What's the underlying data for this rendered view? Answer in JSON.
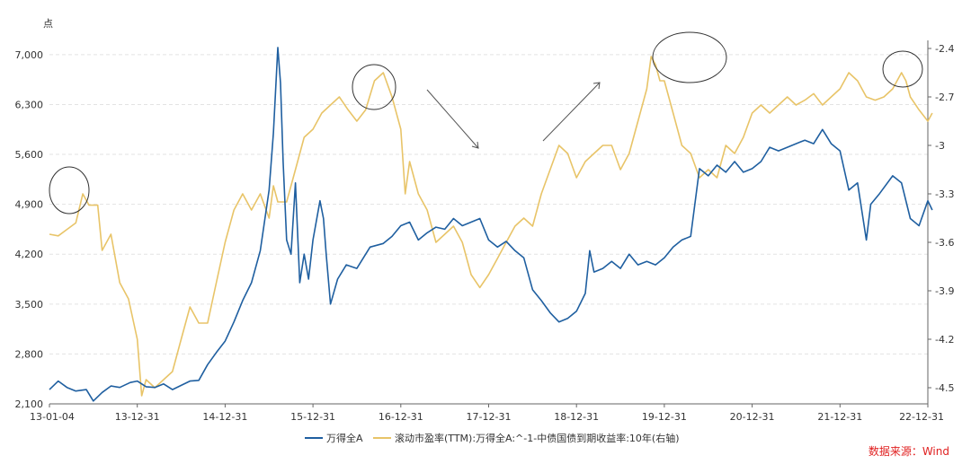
{
  "chart_data": {
    "type": "line",
    "left_unit": "点",
    "left_ylim": [
      2100,
      7200
    ],
    "left_ticks": [
      "7,000",
      "6,300",
      "5,600",
      "4,900",
      "4,200",
      "3,500",
      "2,800",
      "2,100"
    ],
    "right_ylim": [
      -4.6,
      -2.35
    ],
    "right_ticks": [
      "-2.4",
      "-2.7",
      "-3",
      "-3.3",
      "-3.6",
      "-3.9",
      "-4.2",
      "-4.5"
    ],
    "x_ticks": [
      "13-01-04",
      "13-12-31",
      "14-12-31",
      "15-12-31",
      "16-12-31",
      "17-12-31",
      "18-12-31",
      "19-12-31",
      "20-12-31",
      "21-12-31",
      "22-12-31"
    ],
    "grid": true,
    "legend_position": "bottom",
    "series": [
      {
        "name": "万得全A",
        "axis": "left",
        "color": "#1f5fa0",
        "points": [
          [
            0.0,
            2300
          ],
          [
            0.1,
            2420
          ],
          [
            0.2,
            2330
          ],
          [
            0.3,
            2280
          ],
          [
            0.42,
            2300
          ],
          [
            0.5,
            2140
          ],
          [
            0.6,
            2260
          ],
          [
            0.7,
            2350
          ],
          [
            0.8,
            2330
          ],
          [
            0.92,
            2400
          ],
          [
            1.0,
            2420
          ],
          [
            1.1,
            2340
          ],
          [
            1.2,
            2330
          ],
          [
            1.3,
            2380
          ],
          [
            1.4,
            2300
          ],
          [
            1.5,
            2360
          ],
          [
            1.6,
            2420
          ],
          [
            1.7,
            2430
          ],
          [
            1.8,
            2650
          ],
          [
            1.9,
            2820
          ],
          [
            2.0,
            2980
          ],
          [
            2.1,
            3250
          ],
          [
            2.2,
            3550
          ],
          [
            2.3,
            3800
          ],
          [
            2.4,
            4250
          ],
          [
            2.5,
            5100
          ],
          [
            2.55,
            5900
          ],
          [
            2.6,
            7100
          ],
          [
            2.63,
            6600
          ],
          [
            2.66,
            5500
          ],
          [
            2.7,
            4400
          ],
          [
            2.75,
            4200
          ],
          [
            2.8,
            5200
          ],
          [
            2.85,
            3800
          ],
          [
            2.9,
            4200
          ],
          [
            2.95,
            3850
          ],
          [
            3.0,
            4400
          ],
          [
            3.08,
            4950
          ],
          [
            3.12,
            4700
          ],
          [
            3.15,
            4200
          ],
          [
            3.2,
            3500
          ],
          [
            3.28,
            3850
          ],
          [
            3.38,
            4050
          ],
          [
            3.5,
            4000
          ],
          [
            3.65,
            4300
          ],
          [
            3.8,
            4350
          ],
          [
            3.9,
            4450
          ],
          [
            4.0,
            4600
          ],
          [
            4.1,
            4650
          ],
          [
            4.2,
            4400
          ],
          [
            4.3,
            4500
          ],
          [
            4.4,
            4580
          ],
          [
            4.5,
            4550
          ],
          [
            4.6,
            4700
          ],
          [
            4.7,
            4600
          ],
          [
            4.8,
            4650
          ],
          [
            4.9,
            4700
          ],
          [
            5.0,
            4400
          ],
          [
            5.1,
            4300
          ],
          [
            5.2,
            4380
          ],
          [
            5.3,
            4250
          ],
          [
            5.4,
            4150
          ],
          [
            5.5,
            3700
          ],
          [
            5.6,
            3550
          ],
          [
            5.7,
            3380
          ],
          [
            5.8,
            3250
          ],
          [
            5.9,
            3300
          ],
          [
            6.0,
            3400
          ],
          [
            6.1,
            3650
          ],
          [
            6.15,
            4250
          ],
          [
            6.2,
            3950
          ],
          [
            6.3,
            4000
          ],
          [
            6.4,
            4100
          ],
          [
            6.5,
            4000
          ],
          [
            6.6,
            4200
          ],
          [
            6.7,
            4050
          ],
          [
            6.8,
            4100
          ],
          [
            6.9,
            4050
          ],
          [
            7.0,
            4150
          ],
          [
            7.1,
            4300
          ],
          [
            7.2,
            4400
          ],
          [
            7.3,
            4450
          ],
          [
            7.4,
            5400
          ],
          [
            7.5,
            5300
          ],
          [
            7.6,
            5450
          ],
          [
            7.7,
            5350
          ],
          [
            7.8,
            5500
          ],
          [
            7.9,
            5350
          ],
          [
            8.0,
            5400
          ],
          [
            8.1,
            5500
          ],
          [
            8.2,
            5700
          ],
          [
            8.3,
            5650
          ],
          [
            8.4,
            5700
          ],
          [
            8.5,
            5750
          ],
          [
            8.6,
            5800
          ],
          [
            8.7,
            5750
          ],
          [
            8.8,
            5950
          ],
          [
            8.9,
            5750
          ],
          [
            9.0,
            5650
          ],
          [
            9.1,
            5100
          ],
          [
            9.2,
            5200
          ],
          [
            9.3,
            4400
          ],
          [
            9.35,
            4900
          ],
          [
            9.45,
            5050
          ],
          [
            9.6,
            5300
          ],
          [
            9.7,
            5200
          ],
          [
            9.8,
            4700
          ],
          [
            9.9,
            4600
          ],
          [
            10.0,
            4950
          ],
          [
            10.05,
            4820
          ]
        ]
      },
      {
        "name": "滚动市盈率(TTM):万得全A:^-1-中债国债到期收益率:10年(右轴)",
        "axis": "right",
        "color": "#e8c468",
        "points": [
          [
            0.0,
            -3.55
          ],
          [
            0.1,
            -3.56
          ],
          [
            0.2,
            -3.52
          ],
          [
            0.3,
            -3.48
          ],
          [
            0.38,
            -3.3
          ],
          [
            0.45,
            -3.37
          ],
          [
            0.55,
            -3.37
          ],
          [
            0.6,
            -3.65
          ],
          [
            0.7,
            -3.55
          ],
          [
            0.8,
            -3.85
          ],
          [
            0.9,
            -3.95
          ],
          [
            1.0,
            -4.2
          ],
          [
            1.05,
            -4.55
          ],
          [
            1.1,
            -4.45
          ],
          [
            1.2,
            -4.5
          ],
          [
            1.3,
            -4.45
          ],
          [
            1.4,
            -4.4
          ],
          [
            1.5,
            -4.2
          ],
          [
            1.6,
            -4.0
          ],
          [
            1.7,
            -4.1
          ],
          [
            1.8,
            -4.1
          ],
          [
            1.9,
            -3.85
          ],
          [
            2.0,
            -3.6
          ],
          [
            2.1,
            -3.4
          ],
          [
            2.2,
            -3.3
          ],
          [
            2.3,
            -3.4
          ],
          [
            2.4,
            -3.3
          ],
          [
            2.5,
            -3.45
          ],
          [
            2.55,
            -3.25
          ],
          [
            2.6,
            -3.35
          ],
          [
            2.7,
            -3.35
          ],
          [
            2.8,
            -3.15
          ],
          [
            2.9,
            -2.95
          ],
          [
            3.0,
            -2.9
          ],
          [
            3.1,
            -2.8
          ],
          [
            3.2,
            -2.75
          ],
          [
            3.3,
            -2.7
          ],
          [
            3.4,
            -2.78
          ],
          [
            3.5,
            -2.85
          ],
          [
            3.6,
            -2.78
          ],
          [
            3.7,
            -2.6
          ],
          [
            3.8,
            -2.55
          ],
          [
            3.9,
            -2.7
          ],
          [
            4.0,
            -2.9
          ],
          [
            4.05,
            -3.3
          ],
          [
            4.1,
            -3.1
          ],
          [
            4.2,
            -3.3
          ],
          [
            4.3,
            -3.4
          ],
          [
            4.4,
            -3.6
          ],
          [
            4.5,
            -3.55
          ],
          [
            4.6,
            -3.5
          ],
          [
            4.7,
            -3.6
          ],
          [
            4.8,
            -3.8
          ],
          [
            4.9,
            -3.88
          ],
          [
            5.0,
            -3.8
          ],
          [
            5.1,
            -3.7
          ],
          [
            5.2,
            -3.6
          ],
          [
            5.3,
            -3.5
          ],
          [
            5.4,
            -3.45
          ],
          [
            5.5,
            -3.5
          ],
          [
            5.6,
            -3.3
          ],
          [
            5.7,
            -3.15
          ],
          [
            5.8,
            -3.0
          ],
          [
            5.9,
            -3.05
          ],
          [
            6.0,
            -3.2
          ],
          [
            6.1,
            -3.1
          ],
          [
            6.2,
            -3.05
          ],
          [
            6.3,
            -3.0
          ],
          [
            6.4,
            -3.0
          ],
          [
            6.5,
            -3.15
          ],
          [
            6.6,
            -3.05
          ],
          [
            6.7,
            -2.85
          ],
          [
            6.8,
            -2.65
          ],
          [
            6.85,
            -2.45
          ],
          [
            6.9,
            -2.5
          ],
          [
            6.95,
            -2.6
          ],
          [
            7.0,
            -2.6
          ],
          [
            7.1,
            -2.8
          ],
          [
            7.2,
            -3.0
          ],
          [
            7.3,
            -3.05
          ],
          [
            7.4,
            -3.2
          ],
          [
            7.5,
            -3.15
          ],
          [
            7.6,
            -3.2
          ],
          [
            7.7,
            -3.0
          ],
          [
            7.8,
            -3.05
          ],
          [
            7.9,
            -2.95
          ],
          [
            8.0,
            -2.8
          ],
          [
            8.1,
            -2.75
          ],
          [
            8.2,
            -2.8
          ],
          [
            8.3,
            -2.75
          ],
          [
            8.4,
            -2.7
          ],
          [
            8.5,
            -2.75
          ],
          [
            8.6,
            -2.72
          ],
          [
            8.7,
            -2.68
          ],
          [
            8.8,
            -2.75
          ],
          [
            8.9,
            -2.7
          ],
          [
            9.0,
            -2.65
          ],
          [
            9.1,
            -2.55
          ],
          [
            9.2,
            -2.6
          ],
          [
            9.3,
            -2.7
          ],
          [
            9.4,
            -2.72
          ],
          [
            9.5,
            -2.7
          ],
          [
            9.6,
            -2.65
          ],
          [
            9.7,
            -2.55
          ],
          [
            9.75,
            -2.6
          ],
          [
            9.8,
            -2.7
          ],
          [
            9.9,
            -2.78
          ],
          [
            10.0,
            -2.85
          ],
          [
            10.05,
            -2.8
          ]
        ]
      }
    ]
  },
  "source": "数据来源：Wind"
}
